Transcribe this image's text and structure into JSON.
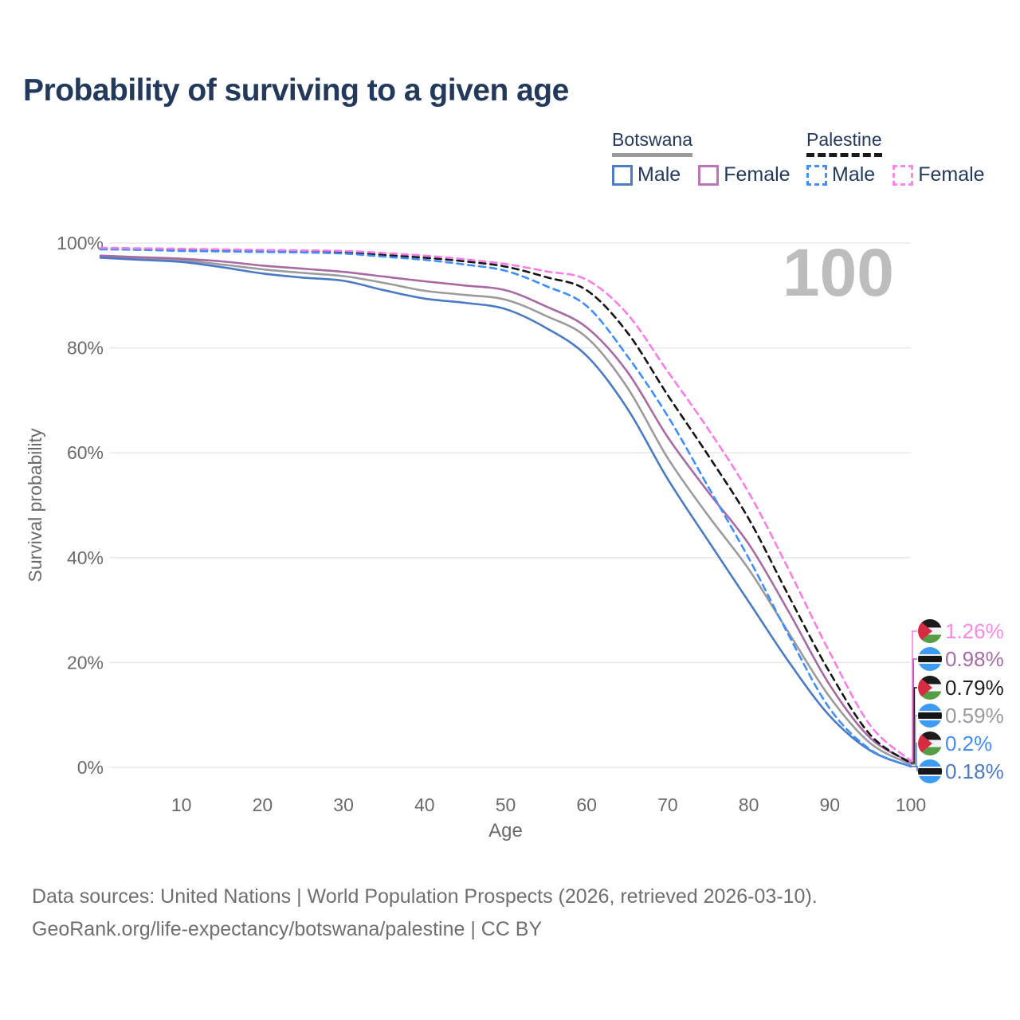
{
  "title": "Probability of surviving to a given age",
  "watermark": "100",
  "legend": {
    "groups": [
      {
        "name": "Botswana",
        "underline_color": "#9b9b9d",
        "dashed": false,
        "items": [
          {
            "label": "Male",
            "color": "#4d7dc4",
            "dashed": false
          },
          {
            "label": "Female",
            "color": "#bf74b9",
            "dashed": false
          }
        ]
      },
      {
        "name": "Palestine",
        "underline_color": "#1a1a1a",
        "dashed": true,
        "items": [
          {
            "label": "Male",
            "color": "#4090ff",
            "dashed": true
          },
          {
            "label": "Female",
            "color": "#fd86ea",
            "dashed": true
          }
        ]
      }
    ]
  },
  "chart_data": {
    "type": "line",
    "title": "Probability of surviving to a given age",
    "xlabel": "Age",
    "ylabel": "Survival probability",
    "xlim": [
      0,
      100
    ],
    "ylim": [
      0,
      100
    ],
    "x_ticks": [
      10,
      20,
      30,
      40,
      50,
      60,
      70,
      80,
      90,
      100
    ],
    "y_ticks": [
      "0%",
      "20%",
      "40%",
      "60%",
      "80%",
      "100%"
    ],
    "grid": "horizontal",
    "legend_position": "top-right",
    "x": [
      0,
      5,
      10,
      15,
      20,
      25,
      30,
      35,
      40,
      45,
      50,
      55,
      60,
      65,
      70,
      75,
      80,
      85,
      90,
      95,
      100
    ],
    "series": [
      {
        "name": "Botswana",
        "country": "Botswana",
        "sex": "Total",
        "color": "#9b9b9d",
        "dashed": false,
        "values": [
          97.4,
          97.0,
          96.7,
          95.9,
          95.0,
          94.3,
          93.7,
          92.4,
          90.9,
          90.1,
          89.2,
          86.1,
          82.0,
          72.5,
          59.0,
          48.0,
          37.8,
          25.5,
          13.4,
          4.6,
          0.59
        ]
      },
      {
        "name": "Botswana Female",
        "country": "Botswana",
        "sex": "Female",
        "color": "#a969a5",
        "dashed": false,
        "values": [
          97.6,
          97.3,
          97.0,
          96.5,
          95.7,
          95.1,
          94.5,
          93.6,
          92.7,
          91.9,
          91.0,
          87.9,
          83.9,
          75.5,
          63.0,
          52.5,
          42.6,
          29.5,
          15.7,
          5.6,
          0.98
        ]
      },
      {
        "name": "Botswana Male",
        "country": "Botswana",
        "sex": "Male",
        "color": "#4a7ac5",
        "dashed": false,
        "values": [
          97.2,
          96.8,
          96.4,
          95.4,
          94.2,
          93.4,
          92.8,
          91.0,
          89.4,
          88.6,
          87.4,
          83.8,
          78.5,
          68.5,
          55.0,
          43.2,
          31.6,
          20.0,
          9.8,
          3.2,
          0.18
        ]
      },
      {
        "name": "Palestine",
        "country": "Palestine",
        "sex": "Total",
        "color": "#161616",
        "dashed": true,
        "values": [
          98.9,
          98.8,
          98.7,
          98.6,
          98.5,
          98.4,
          98.2,
          97.7,
          97.2,
          96.5,
          95.5,
          93.5,
          91.0,
          83.0,
          71.0,
          59.5,
          47.4,
          32.5,
          18.1,
          6.2,
          0.79
        ]
      },
      {
        "name": "Palestine Male",
        "country": "Palestine",
        "sex": "Male",
        "color": "#3f8efd",
        "dashed": true,
        "values": [
          98.8,
          98.7,
          98.5,
          98.4,
          98.3,
          98.2,
          98.0,
          97.4,
          96.8,
          95.9,
          94.7,
          91.8,
          88.0,
          78.5,
          67.0,
          53.5,
          39.9,
          25.0,
          11.2,
          3.4,
          0.2
        ]
      },
      {
        "name": "Palestine Female",
        "country": "Palestine",
        "sex": "Female",
        "color": "#fb7ce9",
        "dashed": true,
        "values": [
          99.1,
          99.0,
          98.9,
          98.8,
          98.7,
          98.6,
          98.5,
          98.1,
          97.6,
          96.9,
          96.0,
          94.6,
          93.0,
          86.5,
          75.5,
          64.5,
          52.4,
          37.5,
          21.9,
          8.0,
          1.26
        ]
      }
    ],
    "end_labels": [
      {
        "value": "1.26%",
        "series": "Palestine Female",
        "flag": "palestine",
        "color": "#fc87e6"
      },
      {
        "value": "0.98%",
        "series": "Botswana Female",
        "flag": "botswana",
        "color": "#a96ba6"
      },
      {
        "value": "0.79%",
        "series": "Palestine",
        "flag": "palestine",
        "color": "#1d1d1d"
      },
      {
        "value": "0.59%",
        "series": "Botswana",
        "flag": "botswana",
        "color": "#9a9a9a"
      },
      {
        "value": "0.2%",
        "series": "Palestine Male",
        "flag": "palestine",
        "color": "#3f8efd"
      },
      {
        "value": "0.18%",
        "series": "Botswana Male",
        "flag": "botswana",
        "color": "#4a7ac5"
      }
    ]
  },
  "flag_colors": {
    "palestine": {
      "black": "#1b1b1b",
      "white": "#f4f4f4",
      "green": "#569d45",
      "red": "#d62c41"
    },
    "botswana": {
      "blue": "#3b9bf5",
      "white": "#f4f4f4",
      "black": "#141414"
    }
  },
  "footer": {
    "line1": "Data sources: United Nations | World Population Prospects (2026, retrieved 2026-03-10).",
    "line2": "GeoRank.org/life-expectancy/botswana/palestine | CC BY"
  }
}
